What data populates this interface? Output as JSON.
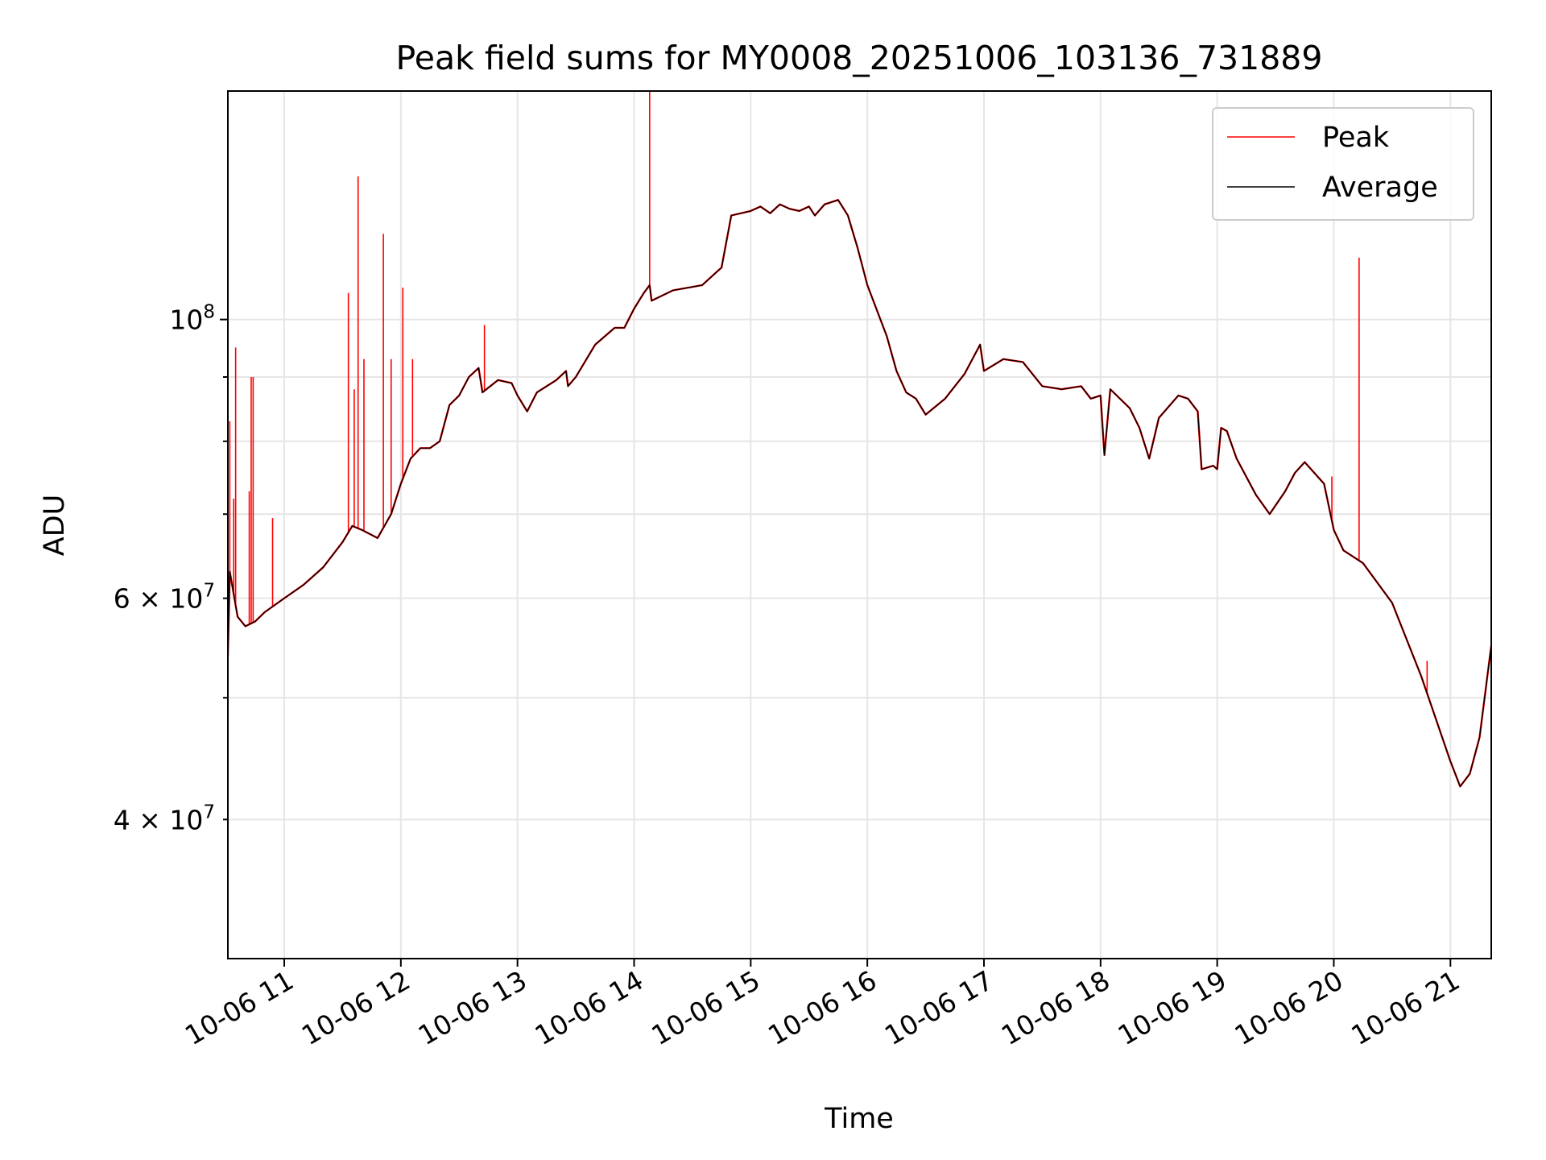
{
  "chart_data": {
    "type": "line",
    "title": "Peak field sums for MY0008_20251006_103136_731889",
    "xlabel": "Time",
    "ylabel": "ADU",
    "y_scale": "log",
    "ylim": [
      31000000,
      152000000
    ],
    "xlim": [
      "2025-10-06 10:31",
      "2025-10-06 21:21"
    ],
    "grid": true,
    "legend_position": "top-right",
    "x_ticks": [
      {
        "label": "10-06 11",
        "value": "2025-10-06 11:00"
      },
      {
        "label": "10-06 12",
        "value": "2025-10-06 12:00"
      },
      {
        "label": "10-06 13",
        "value": "2025-10-06 13:00"
      },
      {
        "label": "10-06 14",
        "value": "2025-10-06 14:00"
      },
      {
        "label": "10-06 15",
        "value": "2025-10-06 15:00"
      },
      {
        "label": "10-06 16",
        "value": "2025-10-06 16:00"
      },
      {
        "label": "10-06 17",
        "value": "2025-10-06 17:00"
      },
      {
        "label": "10-06 18",
        "value": "2025-10-06 18:00"
      },
      {
        "label": "10-06 19",
        "value": "2025-10-06 19:00"
      },
      {
        "label": "10-06 20",
        "value": "2025-10-06 20:00"
      },
      {
        "label": "10-06 21",
        "value": "2025-10-06 21:00"
      }
    ],
    "y_major_ticks": [
      {
        "label": "10",
        "sup": "8",
        "value": 100000000
      }
    ],
    "y_minor_ticks": [
      {
        "label": "4 × 10",
        "sup": "7",
        "value": 40000000
      },
      {
        "label": "6 × 10",
        "sup": "7",
        "value": 60000000
      },
      {
        "value": 50000000
      },
      {
        "value": 70000000
      },
      {
        "value": 80000000
      },
      {
        "value": 90000000
      }
    ],
    "series": [
      {
        "name": "Average",
        "color": "#000000",
        "points": [
          [
            "2025-10-06 10:31",
            54000000
          ],
          [
            "2025-10-06 10:32",
            63000000
          ],
          [
            "2025-10-06 10:36",
            58000000
          ],
          [
            "2025-10-06 10:40",
            57000000
          ],
          [
            "2025-10-06 10:45",
            57500000
          ],
          [
            "2025-10-06 10:50",
            58500000
          ],
          [
            "2025-10-06 11:00",
            60000000
          ],
          [
            "2025-10-06 11:10",
            61500000
          ],
          [
            "2025-10-06 11:20",
            63500000
          ],
          [
            "2025-10-06 11:30",
            66500000
          ],
          [
            "2025-10-06 11:35",
            68500000
          ],
          [
            "2025-10-06 11:40",
            68000000
          ],
          [
            "2025-10-06 11:48",
            67000000
          ],
          [
            "2025-10-06 11:55",
            70000000
          ],
          [
            "2025-10-06 12:00",
            74000000
          ],
          [
            "2025-10-06 12:05",
            77500000
          ],
          [
            "2025-10-06 12:10",
            79000000
          ],
          [
            "2025-10-06 12:15",
            79000000
          ],
          [
            "2025-10-06 12:20",
            80000000
          ],
          [
            "2025-10-06 12:25",
            85500000
          ],
          [
            "2025-10-06 12:30",
            87000000
          ],
          [
            "2025-10-06 12:35",
            90000000
          ],
          [
            "2025-10-06 12:40",
            91500000
          ],
          [
            "2025-10-06 12:42",
            87500000
          ],
          [
            "2025-10-06 12:50",
            89500000
          ],
          [
            "2025-10-06 12:57",
            89000000
          ],
          [
            "2025-10-06 13:00",
            87000000
          ],
          [
            "2025-10-06 13:05",
            84500000
          ],
          [
            "2025-10-06 13:10",
            87500000
          ],
          [
            "2025-10-06 13:20",
            89500000
          ],
          [
            "2025-10-06 13:25",
            91000000
          ],
          [
            "2025-10-06 13:26",
            88500000
          ],
          [
            "2025-10-06 13:30",
            90000000
          ],
          [
            "2025-10-06 13:40",
            95500000
          ],
          [
            "2025-10-06 13:50",
            98500000
          ],
          [
            "2025-10-06 13:55",
            98500000
          ],
          [
            "2025-10-06 14:00",
            102000000
          ],
          [
            "2025-10-06 14:05",
            105000000
          ],
          [
            "2025-10-06 14:08",
            106500000
          ],
          [
            "2025-10-06 14:09",
            103500000
          ],
          [
            "2025-10-06 14:20",
            105500000
          ],
          [
            "2025-10-06 14:35",
            106500000
          ],
          [
            "2025-10-06 14:45",
            110000000
          ],
          [
            "2025-10-06 14:50",
            121000000
          ],
          [
            "2025-10-06 15:00",
            122000000
          ],
          [
            "2025-10-06 15:05",
            123000000
          ],
          [
            "2025-10-06 15:10",
            121500000
          ],
          [
            "2025-10-06 15:15",
            123500000
          ],
          [
            "2025-10-06 15:20",
            122500000
          ],
          [
            "2025-10-06 15:25",
            122000000
          ],
          [
            "2025-10-06 15:30",
            123000000
          ],
          [
            "2025-10-06 15:33",
            121000000
          ],
          [
            "2025-10-06 15:38",
            123500000
          ],
          [
            "2025-10-06 15:45",
            124500000
          ],
          [
            "2025-10-06 15:50",
            121000000
          ],
          [
            "2025-10-06 15:55",
            114000000
          ],
          [
            "2025-10-06 16:00",
            106500000
          ],
          [
            "2025-10-06 16:10",
            97000000
          ],
          [
            "2025-10-06 16:15",
            91000000
          ],
          [
            "2025-10-06 16:20",
            87500000
          ],
          [
            "2025-10-06 16:25",
            86500000
          ],
          [
            "2025-10-06 16:30",
            84000000
          ],
          [
            "2025-10-06 16:40",
            86500000
          ],
          [
            "2025-10-06 16:50",
            90500000
          ],
          [
            "2025-10-06 16:58",
            95500000
          ],
          [
            "2025-10-06 17:00",
            91000000
          ],
          [
            "2025-10-06 17:10",
            93000000
          ],
          [
            "2025-10-06 17:20",
            92500000
          ],
          [
            "2025-10-06 17:30",
            88500000
          ],
          [
            "2025-10-06 17:40",
            88000000
          ],
          [
            "2025-10-06 17:50",
            88500000
          ],
          [
            "2025-10-06 17:55",
            86500000
          ],
          [
            "2025-10-06 18:00",
            87000000
          ],
          [
            "2025-10-06 18:02",
            78000000
          ],
          [
            "2025-10-06 18:05",
            88000000
          ],
          [
            "2025-10-06 18:15",
            85000000
          ],
          [
            "2025-10-06 18:20",
            82000000
          ],
          [
            "2025-10-06 18:25",
            77500000
          ],
          [
            "2025-10-06 18:30",
            83500000
          ],
          [
            "2025-10-06 18:40",
            87000000
          ],
          [
            "2025-10-06 18:45",
            86500000
          ],
          [
            "2025-10-06 18:50",
            84500000
          ],
          [
            "2025-10-06 18:52",
            76000000
          ],
          [
            "2025-10-06 18:58",
            76500000
          ],
          [
            "2025-10-06 19:00",
            76000000
          ],
          [
            "2025-10-06 19:02",
            82000000
          ],
          [
            "2025-10-06 19:05",
            81500000
          ],
          [
            "2025-10-06 19:10",
            77500000
          ],
          [
            "2025-10-06 19:20",
            72500000
          ],
          [
            "2025-10-06 19:27",
            70000000
          ],
          [
            "2025-10-06 19:35",
            73000000
          ],
          [
            "2025-10-06 19:40",
            75500000
          ],
          [
            "2025-10-06 19:45",
            77000000
          ],
          [
            "2025-10-06 19:55",
            74000000
          ],
          [
            "2025-10-06 20:00",
            68000000
          ],
          [
            "2025-10-06 20:05",
            65500000
          ],
          [
            "2025-10-06 20:15",
            64000000
          ],
          [
            "2025-10-06 20:30",
            59500000
          ],
          [
            "2025-10-06 20:45",
            52000000
          ],
          [
            "2025-10-06 21:00",
            44500000
          ],
          [
            "2025-10-06 21:05",
            42500000
          ],
          [
            "2025-10-06 21:10",
            43500000
          ],
          [
            "2025-10-06 21:15",
            46500000
          ],
          [
            "2025-10-06 21:21",
            55000000
          ]
        ]
      },
      {
        "name": "Peak",
        "color": "#ff0000",
        "spikes": [
          [
            "2025-10-06 10:32",
            83000000
          ],
          [
            "2025-10-06 10:34",
            72000000
          ],
          [
            "2025-10-06 10:35",
            95000000
          ],
          [
            "2025-10-06 10:42",
            73000000
          ],
          [
            "2025-10-06 10:43",
            90000000
          ],
          [
            "2025-10-06 10:44",
            90000000
          ],
          [
            "2025-10-06 10:54",
            69500000
          ],
          [
            "2025-10-06 11:33",
            105000000
          ],
          [
            "2025-10-06 11:36",
            88000000
          ],
          [
            "2025-10-06 11:38",
            130000000
          ],
          [
            "2025-10-06 11:41",
            93000000
          ],
          [
            "2025-10-06 11:51",
            117000000
          ],
          [
            "2025-10-06 11:55",
            93000000
          ],
          [
            "2025-10-06 12:01",
            106000000
          ],
          [
            "2025-10-06 12:06",
            93000000
          ],
          [
            "2025-10-06 12:43",
            99000000
          ],
          [
            "2025-10-06 14:08",
            152000000
          ],
          [
            "2025-10-06 19:59",
            75000000
          ],
          [
            "2025-10-06 20:13",
            112000000
          ],
          [
            "2025-10-06 20:48",
            53500000
          ]
        ]
      }
    ]
  }
}
